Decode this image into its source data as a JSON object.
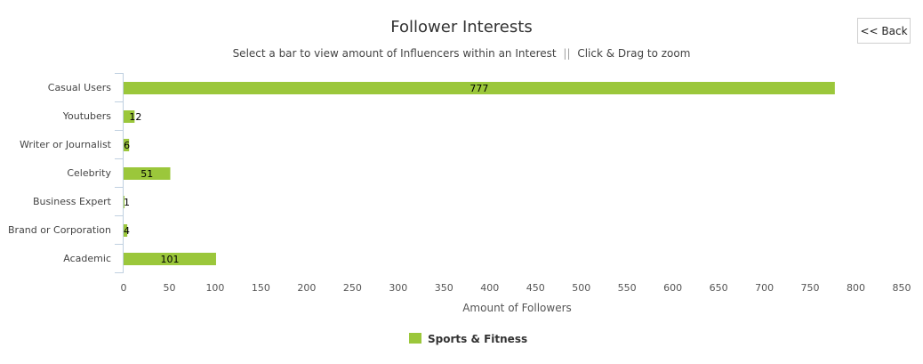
{
  "chart_data": {
    "type": "bar",
    "orientation": "horizontal",
    "title": "Follower Interests",
    "subtitle_parts": [
      "Select a bar to view amount of Influencers within an Interest",
      "||",
      "Click & Drag to zoom"
    ],
    "categories": [
      "Casual Users",
      "Youtubers",
      "Writer or Journalist",
      "Celebrity",
      "Business Expert",
      "Brand or Corporation",
      "Academic"
    ],
    "series": [
      {
        "name": "Sports & Fitness",
        "color": "#9bc73b",
        "values": [
          777,
          12,
          6,
          51,
          1,
          4,
          101
        ]
      }
    ],
    "xlabel": "Amount of Followers",
    "ylabel": "",
    "xlim": [
      0,
      850
    ],
    "xticks": [
      0,
      50,
      100,
      150,
      200,
      250,
      300,
      350,
      400,
      450,
      500,
      550,
      600,
      650,
      700,
      750,
      800,
      850
    ],
    "grid": false,
    "legend": "bottom-center",
    "data_labels": true
  },
  "controls": {
    "back_label": "<< Back"
  }
}
